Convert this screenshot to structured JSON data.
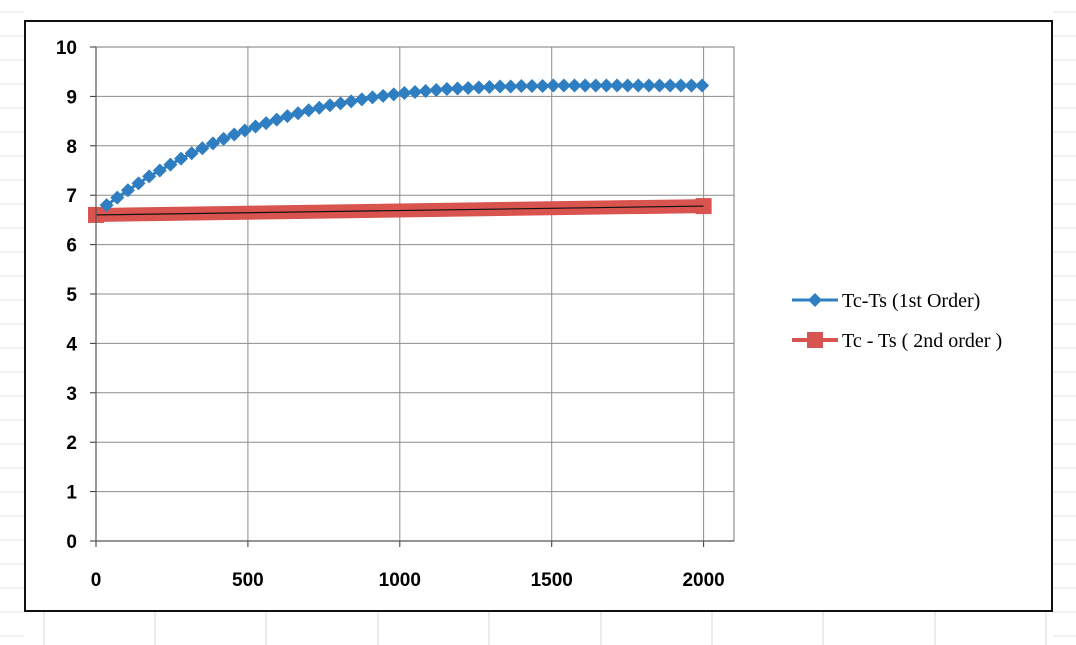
{
  "chart_data": {
    "type": "line",
    "x_ticks": [
      "0",
      "500",
      "1000",
      "1500",
      "2000"
    ],
    "y_ticks": [
      "0",
      "1",
      "2",
      "3",
      "4",
      "5",
      "6",
      "7",
      "8",
      "9",
      "10"
    ],
    "xlim": [
      0,
      2100
    ],
    "ylim": [
      0,
      10
    ],
    "grid": true,
    "legend_position": "right",
    "series": [
      {
        "name": "Tc-Ts (1st Order)",
        "color": "#2E7EC1",
        "marker": "diamond",
        "x": [
          35,
          70,
          105,
          140,
          175,
          210,
          245,
          280,
          315,
          350,
          385,
          420,
          455,
          490,
          525,
          560,
          595,
          630,
          665,
          700,
          735,
          770,
          805,
          840,
          875,
          910,
          945,
          980,
          1015,
          1050,
          1085,
          1120,
          1155,
          1190,
          1225,
          1260,
          1295,
          1330,
          1365,
          1400,
          1435,
          1470,
          1505,
          1540,
          1575,
          1610,
          1645,
          1680,
          1715,
          1750,
          1785,
          1820,
          1855,
          1890,
          1925,
          1960,
          1995
        ],
        "y": [
          6.8,
          6.95,
          7.1,
          7.24,
          7.38,
          7.5,
          7.62,
          7.74,
          7.85,
          7.95,
          8.05,
          8.14,
          8.23,
          8.31,
          8.39,
          8.46,
          8.53,
          8.6,
          8.66,
          8.72,
          8.77,
          8.82,
          8.86,
          8.9,
          8.94,
          8.98,
          9.01,
          9.04,
          9.07,
          9.09,
          9.11,
          9.13,
          9.15,
          9.16,
          9.17,
          9.18,
          9.19,
          9.2,
          9.2,
          9.21,
          9.21,
          9.21,
          9.22,
          9.22,
          9.22,
          9.22,
          9.22,
          9.22,
          9.22,
          9.22,
          9.22,
          9.22,
          9.22,
          9.22,
          9.22,
          9.22,
          9.22
        ]
      },
      {
        "name": "Tc - Ts ( 2nd order )",
        "color": "#D9534F",
        "marker": "square",
        "x": [
          0,
          2000
        ],
        "y": [
          6.6,
          6.78
        ]
      }
    ]
  }
}
